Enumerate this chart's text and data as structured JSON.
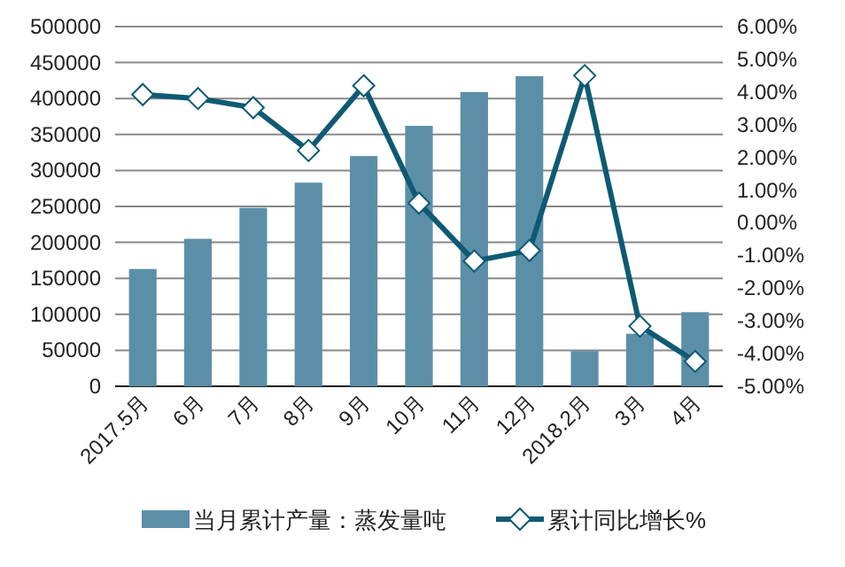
{
  "chart_data": {
    "type": "bar",
    "categories": [
      "2017.5月",
      "6月",
      "7月",
      "8月",
      "9月",
      "10月",
      "11月",
      "12月",
      "2018.2月",
      "3月",
      "4月"
    ],
    "series": [
      {
        "name": "当月累计产量：蒸发量吨",
        "color": "#5b8fa8",
        "values": [
          163000,
          205000,
          248000,
          283000,
          320000,
          362000,
          409000,
          431000,
          49000,
          73000,
          103000
        ]
      },
      {
        "name": "累计同比增长%",
        "type": "line",
        "axis": "y2",
        "color": "#0e5a73",
        "marker": "diamond",
        "values": [
          3.92,
          3.8,
          3.52,
          2.21,
          4.19,
          0.6,
          -1.17,
          -0.85,
          4.5,
          -3.16,
          -4.24
        ]
      }
    ],
    "ylim": [
      0,
      500000
    ],
    "yticks": [
      0,
      50000,
      100000,
      150000,
      200000,
      250000,
      300000,
      350000,
      400000,
      450000,
      500000
    ],
    "y2lim": [
      -5,
      6
    ],
    "y2ticks": [
      {
        "value": -5,
        "label": "-5.00%"
      },
      {
        "value": -4,
        "label": "-4.00%"
      },
      {
        "value": -3,
        "label": "-3.00%"
      },
      {
        "value": -2,
        "label": "-2.00%"
      },
      {
        "value": -1,
        "label": "-1.00%"
      },
      {
        "value": 0,
        "label": "0.00%"
      },
      {
        "value": 1,
        "label": "1.00%"
      },
      {
        "value": 2,
        "label": "2.00%"
      },
      {
        "value": 3,
        "label": "3.00%"
      },
      {
        "value": 4,
        "label": "4.00%"
      },
      {
        "value": 5,
        "label": "5.00%"
      },
      {
        "value": 6,
        "label": "6.00%"
      }
    ],
    "grid": "y",
    "legend": "bottom"
  }
}
